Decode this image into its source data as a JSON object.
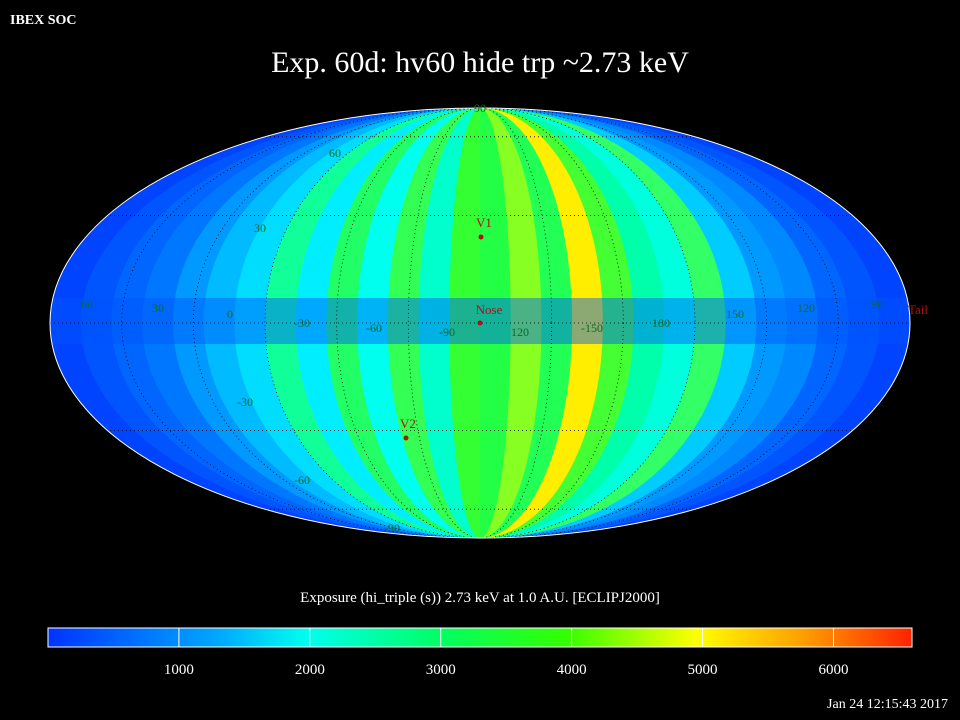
{
  "header": {
    "source": "IBEX SOC",
    "title": "Exp.   60d: hv60 hide trp ~2.73 keV"
  },
  "map": {
    "latitude_labels": [
      "90",
      "60",
      "30",
      "-30",
      "-60",
      "-90"
    ],
    "longitude_labels": [
      "60",
      "30",
      "0",
      "-30",
      "-60",
      "-90",
      "120",
      "-150",
      "180",
      "150",
      "120",
      "90"
    ],
    "markers": [
      "V1",
      "Nose",
      "V2",
      "Tail"
    ]
  },
  "colorbar": {
    "title": "Exposure (hi_triple (s))  2.73 keV at 1.0 A.U. [ECLIPJ2000]",
    "range": [
      0,
      6600
    ],
    "ticks": [
      1000,
      2000,
      3000,
      4000,
      5000,
      6000
    ]
  },
  "timestamp": "Jan 24 12:15:43 2017"
}
